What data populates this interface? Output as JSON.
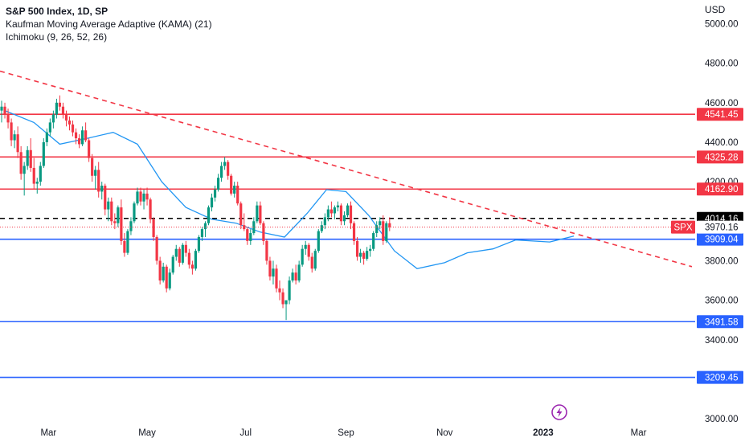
{
  "legend": {
    "title": "S&P 500 Index, 1D, SP",
    "indicator_1": "Kaufman Moving Average Adaptive (KAMA) (21)",
    "indicator_2": "Ichimoku (9, 26, 52, 26)"
  },
  "currency": "USD",
  "chart_data": {
    "type": "candlestick",
    "y_axis": {
      "ticks": [
        {
          "value": 3000,
          "label": "3000.00"
        },
        {
          "value": 3200,
          "label": "3200.00"
        },
        {
          "value": 3400,
          "label": "3400.00"
        },
        {
          "value": 3600,
          "label": "3600.00"
        },
        {
          "value": 3800,
          "label": "3800.00"
        },
        {
          "value": 4000,
          "label": "4000.00"
        },
        {
          "value": 4200,
          "label": "4200.00"
        },
        {
          "value": 4400,
          "label": "4400.00"
        },
        {
          "value": 4600,
          "label": "4600.00"
        },
        {
          "value": 4800,
          "label": "4800.00"
        },
        {
          "value": 5000,
          "label": "5000.00"
        }
      ],
      "range": [
        2980,
        5120
      ]
    },
    "x_axis": {
      "ticks": [
        {
          "date": "2022-03-01",
          "label": "Mar",
          "bold": false
        },
        {
          "date": "2022-05-01",
          "label": "May",
          "bold": false
        },
        {
          "date": "2022-07-01",
          "label": "Jul",
          "bold": false
        },
        {
          "date": "2022-09-01",
          "label": "Sep",
          "bold": false
        },
        {
          "date": "2022-11-01",
          "label": "Nov",
          "bold": false
        },
        {
          "date": "2023-01-01",
          "label": "2023",
          "bold": true
        },
        {
          "date": "2023-03-01",
          "label": "Mar",
          "bold": false
        }
      ],
      "range": [
        "2022-01-30",
        "2023-04-05"
      ]
    },
    "horizontal_levels": [
      {
        "value": 4541.45,
        "label": "4541.45",
        "color": "#f23645",
        "style": "solid"
      },
      {
        "value": 4325.28,
        "label": "4325.28",
        "color": "#f23645",
        "style": "solid"
      },
      {
        "value": 4162.9,
        "label": "4162.90",
        "color": "#f23645",
        "style": "solid"
      },
      {
        "value": 4014.16,
        "label": "4014.16",
        "color": "#000000",
        "style": "dashed"
      },
      {
        "value": 3909.04,
        "label": "3909.04",
        "color": "#2962ff",
        "style": "solid"
      },
      {
        "value": 3491.58,
        "label": "3491.58",
        "color": "#2962ff",
        "style": "solid"
      },
      {
        "value": 3209.45,
        "label": "3209.45",
        "color": "#2962ff",
        "style": "solid"
      }
    ],
    "last_price": {
      "symbol": "SPX",
      "value": 3970.16,
      "label": "3970.16",
      "color": "#f23645"
    },
    "trendline": {
      "color": "#f23645",
      "points": [
        {
          "date": "2022-01-30",
          "value": 4760
        },
        {
          "date": "2023-04-03",
          "value": 3770
        }
      ]
    },
    "kama": {
      "name": "KAMA (21)",
      "color": "#2196f3",
      "points": [
        {
          "date": "2022-02-02",
          "value": 4560
        },
        {
          "date": "2022-02-20",
          "value": 4500
        },
        {
          "date": "2022-03-08",
          "value": 4390
        },
        {
          "date": "2022-03-25",
          "value": 4420
        },
        {
          "date": "2022-04-10",
          "value": 4450
        },
        {
          "date": "2022-04-25",
          "value": 4390
        },
        {
          "date": "2022-05-10",
          "value": 4200
        },
        {
          "date": "2022-05-25",
          "value": 4070
        },
        {
          "date": "2022-06-10",
          "value": 4010
        },
        {
          "date": "2022-06-25",
          "value": 3990
        },
        {
          "date": "2022-07-10",
          "value": 3945
        },
        {
          "date": "2022-07-25",
          "value": 3920
        },
        {
          "date": "2022-08-08",
          "value": 4040
        },
        {
          "date": "2022-08-20",
          "value": 4160
        },
        {
          "date": "2022-09-01",
          "value": 4150
        },
        {
          "date": "2022-09-15",
          "value": 4030
        },
        {
          "date": "2022-10-01",
          "value": 3850
        },
        {
          "date": "2022-10-15",
          "value": 3760
        },
        {
          "date": "2022-11-01",
          "value": 3790
        },
        {
          "date": "2022-11-15",
          "value": 3840
        },
        {
          "date": "2022-12-01",
          "value": 3860
        },
        {
          "date": "2022-12-15",
          "value": 3905
        },
        {
          "date": "2023-01-05",
          "value": 3895
        },
        {
          "date": "2023-01-20",
          "value": 3925
        }
      ]
    },
    "candles": {
      "bull_color": "#089981",
      "bear_color": "#f23645",
      "interval_days": 2,
      "start": "2022-01-31",
      "ohlc": [
        [
          4560,
          4610,
          4500,
          4580
        ],
        [
          4580,
          4600,
          4520,
          4540
        ],
        [
          4540,
          4570,
          4470,
          4500
        ],
        [
          4500,
          4520,
          4380,
          4410
        ],
        [
          4410,
          4460,
          4370,
          4440
        ],
        [
          4440,
          4480,
          4320,
          4350
        ],
        [
          4350,
          4380,
          4210,
          4240
        ],
        [
          4240,
          4300,
          4130,
          4280
        ],
        [
          4280,
          4380,
          4260,
          4360
        ],
        [
          4360,
          4420,
          4250,
          4270
        ],
        [
          4270,
          4320,
          4160,
          4190
        ],
        [
          4190,
          4220,
          4140,
          4200
        ],
        [
          4200,
          4300,
          4180,
          4280
        ],
        [
          4280,
          4420,
          4270,
          4400
        ],
        [
          4400,
          4470,
          4380,
          4450
        ],
        [
          4450,
          4520,
          4430,
          4500
        ],
        [
          4500,
          4560,
          4470,
          4540
        ],
        [
          4540,
          4620,
          4520,
          4600
        ],
        [
          4600,
          4637,
          4560,
          4580
        ],
        [
          4580,
          4600,
          4520,
          4540
        ],
        [
          4540,
          4560,
          4480,
          4510
        ],
        [
          4510,
          4530,
          4460,
          4490
        ],
        [
          4490,
          4510,
          4430,
          4450
        ],
        [
          4450,
          4470,
          4390,
          4420
        ],
        [
          4420,
          4440,
          4370,
          4390
        ],
        [
          4390,
          4480,
          4380,
          4460
        ],
        [
          4460,
          4500,
          4400,
          4410
        ],
        [
          4410,
          4420,
          4300,
          4320
        ],
        [
          4320,
          4340,
          4200,
          4230
        ],
        [
          4230,
          4280,
          4160,
          4260
        ],
        [
          4260,
          4300,
          4120,
          4150
        ],
        [
          4150,
          4200,
          4110,
          4180
        ],
        [
          4180,
          4190,
          4030,
          4060
        ],
        [
          4060,
          4120,
          4000,
          4100
        ],
        [
          4100,
          4120,
          3980,
          4000
        ],
        [
          4000,
          4040,
          3960,
          3990
        ],
        [
          3990,
          4080,
          3970,
          4070
        ],
        [
          4070,
          4110,
          3880,
          3900
        ],
        [
          3900,
          3940,
          3820,
          3840
        ],
        [
          3840,
          3960,
          3830,
          3950
        ],
        [
          3950,
          4020,
          3930,
          4000
        ],
        [
          4000,
          4100,
          3990,
          4090
        ],
        [
          4090,
          4170,
          4080,
          4150
        ],
        [
          4150,
          4170,
          4080,
          4100
        ],
        [
          4100,
          4160,
          4060,
          4140
        ],
        [
          4140,
          4170,
          4080,
          4110
        ],
        [
          4110,
          4120,
          3990,
          4010
        ],
        [
          4010,
          4020,
          3900,
          3920
        ],
        [
          3920,
          3930,
          3780,
          3800
        ],
        [
          3800,
          3820,
          3680,
          3700
        ],
        [
          3700,
          3790,
          3690,
          3770
        ],
        [
          3770,
          3780,
          3640,
          3660
        ],
        [
          3660,
          3760,
          3650,
          3740
        ],
        [
          3740,
          3830,
          3730,
          3820
        ],
        [
          3820,
          3880,
          3800,
          3860
        ],
        [
          3860,
          3870,
          3770,
          3790
        ],
        [
          3790,
          3890,
          3780,
          3880
        ],
        [
          3880,
          3900,
          3820,
          3840
        ],
        [
          3840,
          3860,
          3760,
          3780
        ],
        [
          3780,
          3800,
          3730,
          3760
        ],
        [
          3760,
          3860,
          3750,
          3850
        ],
        [
          3850,
          3930,
          3840,
          3920
        ],
        [
          3920,
          3970,
          3900,
          3960
        ],
        [
          3960,
          4000,
          3920,
          3990
        ],
        [
          3990,
          4080,
          3980,
          4070
        ],
        [
          4070,
          4140,
          4050,
          4120
        ],
        [
          4120,
          4180,
          4100,
          4160
        ],
        [
          4160,
          4240,
          4150,
          4220
        ],
        [
          4220,
          4300,
          4200,
          4280
        ],
        [
          4280,
          4325,
          4260,
          4300
        ],
        [
          4300,
          4310,
          4210,
          4230
        ],
        [
          4230,
          4240,
          4130,
          4140
        ],
        [
          4140,
          4200,
          4120,
          4180
        ],
        [
          4180,
          4200,
          4080,
          4090
        ],
        [
          4090,
          4100,
          3960,
          3980
        ],
        [
          3980,
          4040,
          3950,
          3960
        ],
        [
          3960,
          3970,
          3880,
          3900
        ],
        [
          3900,
          3960,
          3880,
          3940
        ],
        [
          3940,
          4020,
          3930,
          4000
        ],
        [
          4000,
          4100,
          3990,
          4080
        ],
        [
          4080,
          4100,
          3980,
          3990
        ],
        [
          3990,
          4000,
          3880,
          3900
        ],
        [
          3900,
          3910,
          3780,
          3800
        ],
        [
          3800,
          3820,
          3700,
          3720
        ],
        [
          3720,
          3800,
          3680,
          3760
        ],
        [
          3760,
          3780,
          3640,
          3660
        ],
        [
          3660,
          3700,
          3600,
          3640
        ],
        [
          3640,
          3660,
          3560,
          3580
        ],
        [
          3580,
          3600,
          3500,
          3600
        ],
        [
          3600,
          3720,
          3580,
          3700
        ],
        [
          3700,
          3760,
          3690,
          3740
        ],
        [
          3740,
          3780,
          3680,
          3700
        ],
        [
          3700,
          3800,
          3690,
          3780
        ],
        [
          3780,
          3880,
          3770,
          3860
        ],
        [
          3860,
          3900,
          3830,
          3880
        ],
        [
          3880,
          3890,
          3800,
          3820
        ],
        [
          3820,
          3840,
          3740,
          3760
        ],
        [
          3760,
          3860,
          3750,
          3850
        ],
        [
          3850,
          3960,
          3840,
          3950
        ],
        [
          3950,
          4000,
          3940,
          3980
        ],
        [
          3980,
          4040,
          3960,
          4020
        ],
        [
          4020,
          4080,
          4000,
          4060
        ],
        [
          4060,
          4100,
          4020,
          4040
        ],
        [
          4040,
          4080,
          4010,
          4070
        ],
        [
          4070,
          4100,
          4050,
          4080
        ],
        [
          4080,
          4090,
          3980,
          4000
        ],
        [
          4000,
          4050,
          3980,
          4030
        ],
        [
          4030,
          4090,
          4020,
          4080
        ],
        [
          4080,
          4100,
          3960,
          3990
        ],
        [
          3990,
          4000,
          3880,
          3900
        ],
        [
          3900,
          3920,
          3800,
          3820
        ],
        [
          3820,
          3860,
          3790,
          3840
        ],
        [
          3840,
          3850,
          3780,
          3810
        ],
        [
          3810,
          3870,
          3800,
          3850
        ],
        [
          3850,
          3880,
          3820,
          3860
        ],
        [
          3860,
          3950,
          3850,
          3940
        ],
        [
          3940,
          4000,
          3920,
          3980
        ],
        [
          3980,
          4020,
          3960,
          4000
        ],
        [
          4000,
          4030,
          3880,
          3900
        ],
        [
          3900,
          4000,
          3890,
          3990
        ],
        [
          3990,
          4020,
          3950,
          3970
        ]
      ]
    }
  },
  "footer_icon": "lightning-bolt-icon"
}
